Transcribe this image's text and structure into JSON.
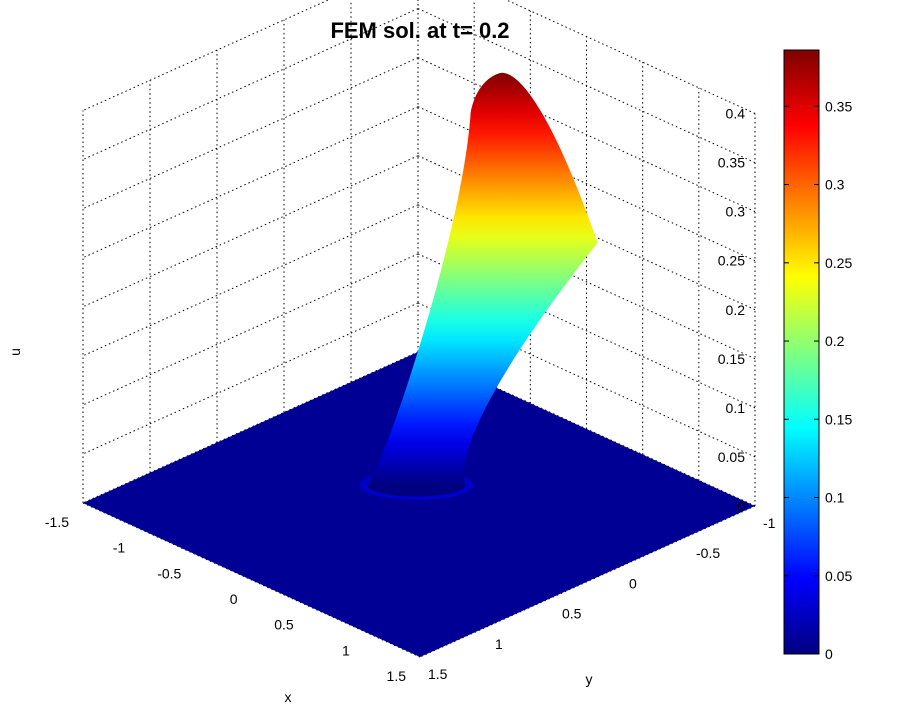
{
  "chart_data": {
    "type": "surface",
    "title": "FEM sol. at t= 0.2",
    "xlabel": "x",
    "ylabel": "y",
    "zlabel": "u",
    "xlim": [
      -1.5,
      1.5
    ],
    "ylim": [
      -1,
      1.5
    ],
    "zlim": [
      0,
      0.4
    ],
    "x_ticks": [
      "-1.5",
      "-1",
      "-0.5",
      "0",
      "0.5",
      "1",
      "1.5"
    ],
    "y_ticks": [
      "-1",
      "-0.5",
      "0",
      "0.5",
      "1",
      "1.5"
    ],
    "z_ticks": [
      "0",
      "0.05",
      "0.1",
      "0.15",
      "0.2",
      "0.25",
      "0.3",
      "0.35",
      "0.4"
    ],
    "grid": true,
    "surface": {
      "peak_value": 0.386,
      "peak_x": -0.15,
      "peak_y": -0.5,
      "base_center_x": -0.2,
      "base_center_y": 0.1,
      "support_radius": 0.38,
      "background_value": 0.0
    },
    "colorbar": {
      "colormap": "jet",
      "min": 0,
      "max": 0.386,
      "ticks": [
        "0",
        "0.05",
        "0.1",
        "0.15",
        "0.2",
        "0.25",
        "0.3",
        "0.35"
      ],
      "placement": "right"
    }
  }
}
